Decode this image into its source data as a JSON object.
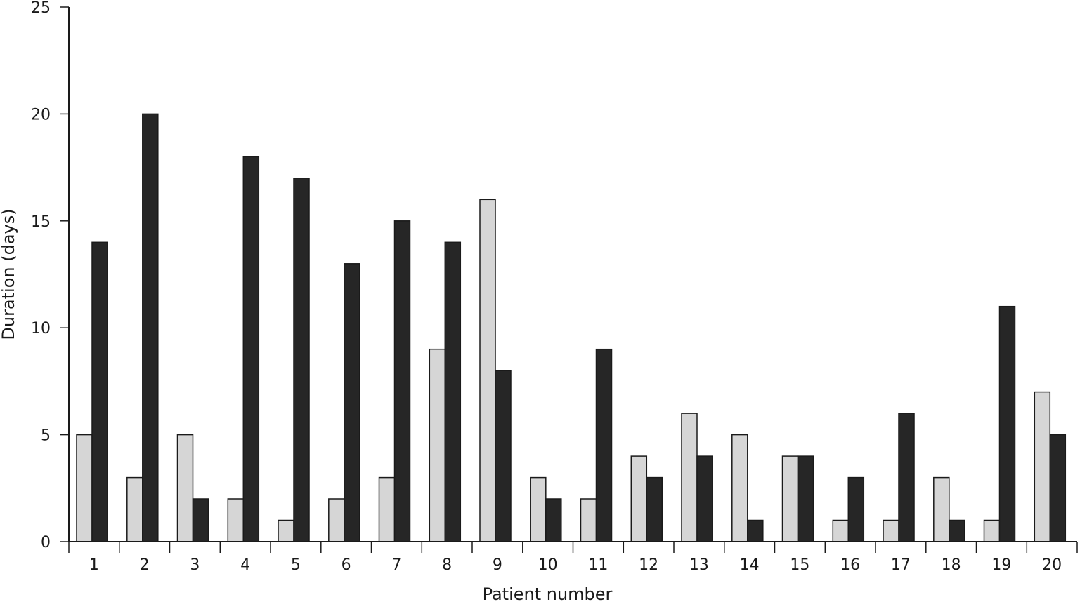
{
  "chart_data": {
    "type": "bar",
    "xlabel": "Patient number",
    "ylabel": "Duration (days)",
    "ylim": [
      0,
      25
    ],
    "yticks": [
      "0",
      "5",
      "10",
      "15",
      "20",
      "25"
    ],
    "categories": [
      "1",
      "2",
      "3",
      "4",
      "5",
      "6",
      "7",
      "8",
      "9",
      "10",
      "11",
      "12",
      "13",
      "14",
      "15",
      "16",
      "17",
      "18",
      "19",
      "20"
    ],
    "series": [
      {
        "values": [
          5,
          3,
          5,
          2,
          1,
          2,
          3,
          9,
          16,
          3,
          2,
          4,
          6,
          5,
          4,
          1,
          1,
          3,
          1,
          7
        ],
        "color": "#d6d6d6"
      },
      {
        "values": [
          14,
          20,
          2,
          18,
          17,
          13,
          15,
          14,
          8,
          2,
          9,
          3,
          4,
          1,
          4,
          3,
          6,
          1,
          11,
          5
        ],
        "color": "#262626"
      }
    ],
    "grid": false,
    "legend": "none"
  }
}
